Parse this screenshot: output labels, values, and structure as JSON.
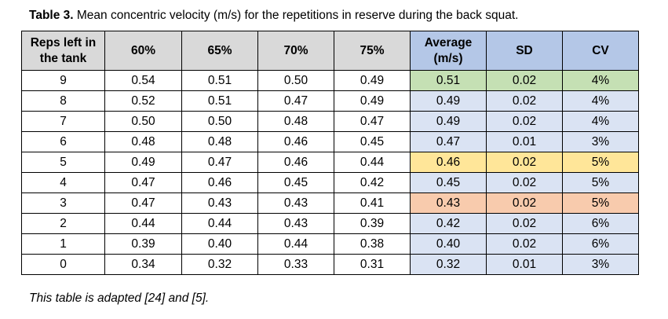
{
  "caption": {
    "label": "Table 3.",
    "text": " Mean concentric velocity (m/s) for the repetitions in reserve during the back squat."
  },
  "table": {
    "headers": [
      "Reps left in the tank",
      "60%",
      "65%",
      "70%",
      "75%",
      "Average (m/s)",
      "SD",
      "CV"
    ],
    "rows": [
      [
        "9",
        "0.54",
        "0.51",
        "0.50",
        "0.49",
        "0.51",
        "0.02",
        "4%"
      ],
      [
        "8",
        "0.52",
        "0.51",
        "0.47",
        "0.49",
        "0.49",
        "0.02",
        "4%"
      ],
      [
        "7",
        "0.50",
        "0.50",
        "0.48",
        "0.47",
        "0.49",
        "0.02",
        "4%"
      ],
      [
        "6",
        "0.48",
        "0.48",
        "0.46",
        "0.45",
        "0.47",
        "0.01",
        "3%"
      ],
      [
        "5",
        "0.49",
        "0.47",
        "0.46",
        "0.44",
        "0.46",
        "0.02",
        "5%"
      ],
      [
        "4",
        "0.47",
        "0.46",
        "0.45",
        "0.42",
        "0.45",
        "0.02",
        "5%"
      ],
      [
        "3",
        "0.47",
        "0.43",
        "0.43",
        "0.41",
        "0.43",
        "0.02",
        "5%"
      ],
      [
        "2",
        "0.44",
        "0.44",
        "0.43",
        "0.39",
        "0.42",
        "0.02",
        "6%"
      ],
      [
        "1",
        "0.39",
        "0.40",
        "0.44",
        "0.38",
        "0.40",
        "0.02",
        "6%"
      ],
      [
        "0",
        "0.34",
        "0.32",
        "0.33",
        "0.31",
        "0.32",
        "0.01",
        "3%"
      ]
    ],
    "row_highlights": [
      "green",
      "",
      "",
      "",
      "yellow",
      "",
      "orange",
      "",
      "",
      ""
    ],
    "colors": {
      "header_gray": "#d9d9d9",
      "header_blue": "#b4c7e7",
      "cell_blue": "#dae3f3",
      "highlight_green": "#c5e0b4",
      "highlight_yellow": "#ffe699",
      "highlight_orange": "#f8cbad"
    }
  },
  "footnote": "This table is adapted [24] and [5]."
}
